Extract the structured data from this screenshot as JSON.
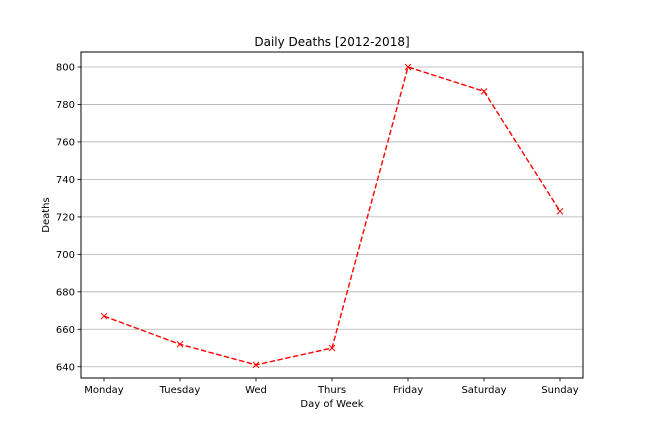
{
  "chart_data": {
    "type": "line",
    "title": "Daily Deaths [2012-2018]",
    "xlabel": "Day of Week",
    "ylabel": "Deaths",
    "categories": [
      "Monday",
      "Tuesday",
      "Wed",
      "Thurs",
      "Friday",
      "Saturday",
      "Sunday"
    ],
    "series": [
      {
        "values": [
          667,
          652,
          641,
          650,
          800,
          787,
          723
        ],
        "color": "#ff0000",
        "line_style": "dashed",
        "marker": "x"
      }
    ],
    "ylim": [
      634,
      808
    ],
    "yticks": [
      640,
      660,
      680,
      700,
      720,
      740,
      760,
      780,
      800
    ],
    "grid": "horizontal",
    "grid_color": "#b0b0b0"
  }
}
